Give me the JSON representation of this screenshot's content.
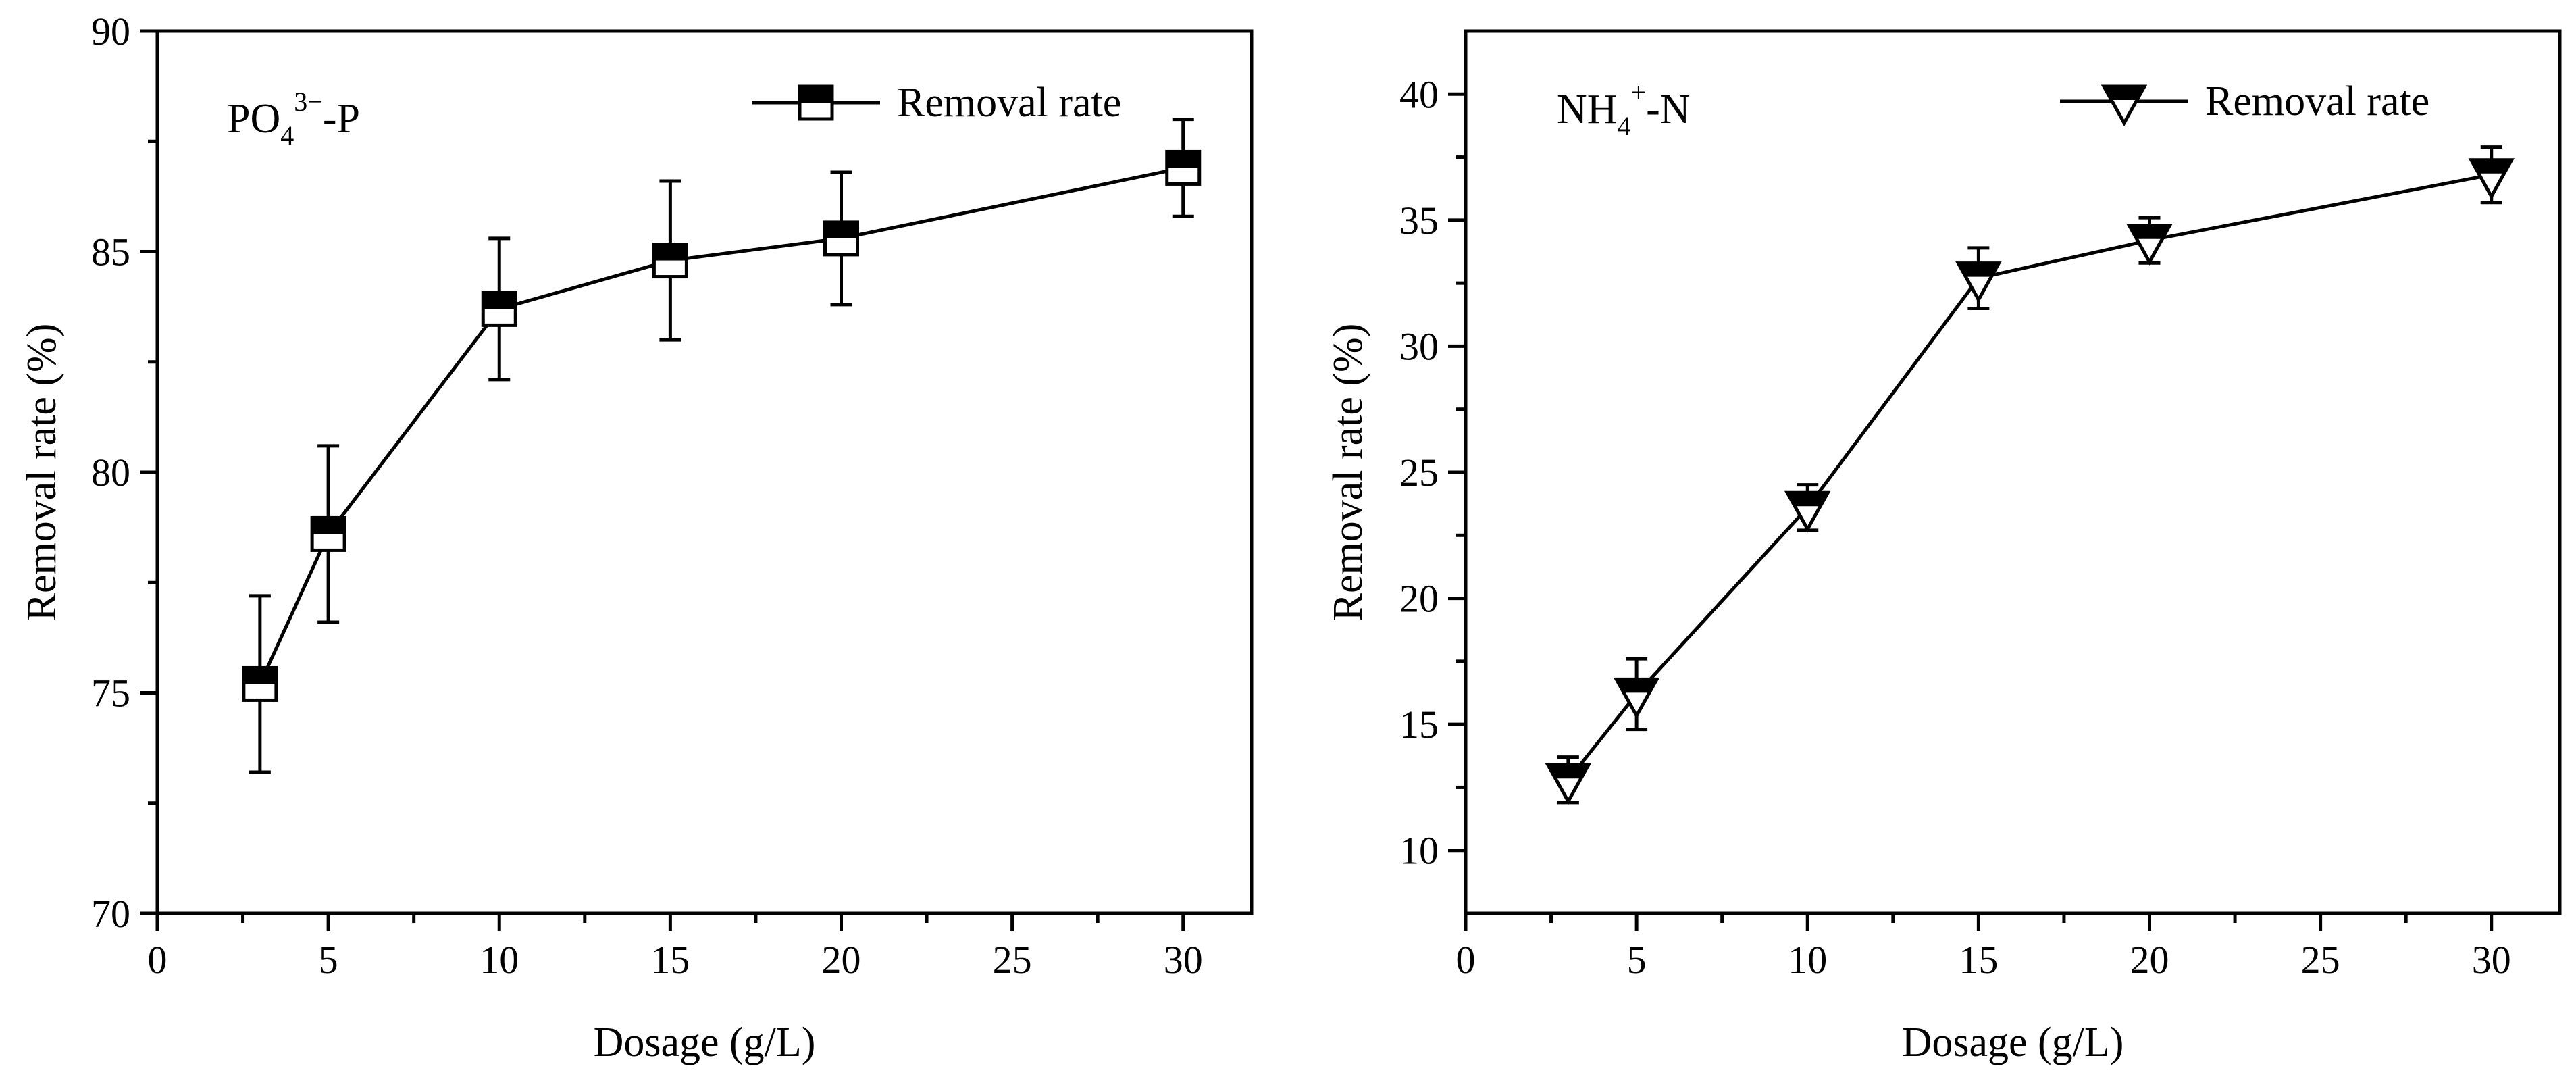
{
  "chart_data": [
    {
      "type": "line",
      "panel_label": {
        "main": "PO",
        "sub": "4",
        "sup": "3−",
        "tail": "-P"
      },
      "xlabel": "Dosage (g/L)",
      "ylabel": "Removal rate (%)",
      "xlim": [
        0,
        32
      ],
      "ylim": [
        70,
        90
      ],
      "xticks": [
        0,
        5,
        10,
        15,
        20,
        25,
        30
      ],
      "yticks": [
        70,
        75,
        80,
        85,
        90
      ],
      "marker": "square-half-filled",
      "legend": {
        "label": "Removal rate",
        "position": "top-right"
      },
      "series": [
        {
          "name": "Removal rate",
          "x": [
            3,
            5,
            10,
            15,
            20,
            30
          ],
          "y": [
            75.2,
            78.6,
            83.7,
            84.8,
            85.3,
            86.9
          ],
          "err": [
            2.0,
            2.0,
            1.6,
            1.8,
            1.5,
            1.1
          ]
        }
      ]
    },
    {
      "type": "line",
      "panel_label": {
        "main": "NH",
        "sub": "4",
        "sup": "+",
        "tail": "-N"
      },
      "xlabel": "Dosage (g/L)",
      "ylabel": "Removal rate (%)",
      "xlim": [
        0,
        32
      ],
      "ylim": [
        7.5,
        42.5
      ],
      "xticks": [
        0,
        5,
        10,
        15,
        20,
        25,
        30
      ],
      "yticks": [
        10,
        15,
        20,
        25,
        30,
        35,
        40
      ],
      "marker": "triangle-down-half-filled",
      "legend": {
        "label": "Removal rate",
        "position": "top-right"
      },
      "series": [
        {
          "name": "Removal rate",
          "x": [
            3,
            5,
            10,
            15,
            20,
            30
          ],
          "y": [
            12.8,
            16.2,
            23.6,
            32.7,
            34.2,
            36.8
          ],
          "err": [
            0.9,
            1.4,
            0.9,
            1.2,
            0.9,
            1.1
          ]
        }
      ]
    }
  ]
}
